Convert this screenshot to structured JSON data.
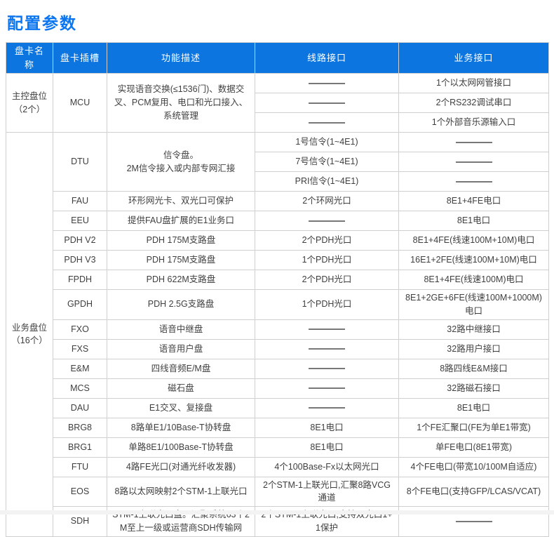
{
  "page_title": "配置参数",
  "colors": {
    "title": "#0b76f0",
    "header_bg": "#0d75e0",
    "header_text": "#ffffff",
    "border": "#cfcfcf",
    "body_text": "#3f3f3f",
    "dash": "#787878"
  },
  "table": {
    "headers": [
      "盘卡名称",
      "盘卡插槽",
      "功能描述",
      "线路接口",
      "业务接口"
    ],
    "sections": [
      {
        "name": "主控盘位",
        "count": "（2个）",
        "cards": [
          {
            "slot": "MCU",
            "desc": "实现语音交换(≤1536门)、数据交叉、PCM复用、电口和光口接入、系统管理",
            "desc_align": "left",
            "subrows": [
              {
                "line": "",
                "service": "1个以太网网管接口"
              },
              {
                "line": "",
                "service": "2个RS232调试串口"
              },
              {
                "line": "",
                "service": "1个外部音乐源输入口"
              }
            ]
          }
        ]
      },
      {
        "name": "业务盘位",
        "count": "（16个）",
        "cards": [
          {
            "slot": "DTU",
            "desc": "信令盘。\n2M信令接入或内部专网汇接",
            "desc_align": "left",
            "subrows": [
              {
                "line": "1号信令(1~4E1)",
                "service": ""
              },
              {
                "line": "7号信令(1~4E1)",
                "service": ""
              },
              {
                "line": "PRI信令(1~4E1)",
                "service": ""
              }
            ]
          },
          {
            "slot": "FAU",
            "desc": "环形网光卡、双光口可保护",
            "subrows": [
              {
                "line": "2个环网光口",
                "service": "8E1+4FE电口"
              }
            ]
          },
          {
            "slot": "EEU",
            "desc": "提供FAU盘扩展的E1业务口",
            "subrows": [
              {
                "line": "",
                "service": "8E1电口"
              }
            ]
          },
          {
            "slot": "PDH V2",
            "desc": "PDH 175M支路盘",
            "subrows": [
              {
                "line": "2个PDH光口",
                "service": "8E1+4FE(线速100M+10M)电口"
              }
            ]
          },
          {
            "slot": "PDH V3",
            "desc": "PDH 175M支路盘",
            "subrows": [
              {
                "line": "1个PDH光口",
                "service": "16E1+2FE(线速100M+10M)电口"
              }
            ]
          },
          {
            "slot": "FPDH",
            "desc": "PDH 622M支路盘",
            "subrows": [
              {
                "line": "2个PDH光口",
                "service": "8E1+4FE(线速100M)电口"
              }
            ]
          },
          {
            "slot": "GPDH",
            "desc": "PDH 2.5G支路盘",
            "subrows": [
              {
                "line": "1个PDH光口",
                "service": "8E1+2GE+6FE(线速100M+1000M)电口"
              }
            ]
          },
          {
            "slot": "FXO",
            "desc": "语音中继盘",
            "subrows": [
              {
                "line": "",
                "service": "32路中继接口"
              }
            ]
          },
          {
            "slot": "FXS",
            "desc": "语音用户盘",
            "subrows": [
              {
                "line": "",
                "service": "32路用户接口"
              }
            ]
          },
          {
            "slot": "E&M",
            "desc": "四线音频E/M盘",
            "subrows": [
              {
                "line": "",
                "service": "8路四线E&M接口"
              }
            ]
          },
          {
            "slot": "MCS",
            "desc": "磁石盘",
            "subrows": [
              {
                "line": "",
                "service": "32路磁石接口"
              }
            ]
          },
          {
            "slot": "DAU",
            "desc": "E1交叉、复接盘",
            "subrows": [
              {
                "line": "",
                "service": "8E1电口"
              }
            ]
          },
          {
            "slot": "BRG8",
            "desc": "8路单E1/10Base-T协转盘",
            "subrows": [
              {
                "line": "8E1电口",
                "service": "1个FE汇聚口(FE为单E1带宽)"
              }
            ]
          },
          {
            "slot": "BRG1",
            "desc": "单路8E1/100Base-T协转盘",
            "subrows": [
              {
                "line": "8E1电口",
                "service": "单FE电口(8E1带宽)"
              }
            ]
          },
          {
            "slot": "FTU",
            "desc": "4路FE光口(对通光纤收发器)",
            "subrows": [
              {
                "line": "4个100Base-Fx以太网光口",
                "service": "4个FE电口(带宽10/100M自适应)"
              }
            ]
          },
          {
            "slot": "EOS",
            "desc": "8路以太网映射2个STM-1上联光口",
            "subrows": [
              {
                "line": "2个STM-1上联光口,汇聚8路VCG通道",
                "service": "8个FE电口(支持GFP/LCAS/VCAT)"
              }
            ]
          },
          {
            "slot": "SDH",
            "desc": "STM-1上联光口盘。汇聚系统63个2M至上一级或运营商SDH传输网",
            "desc_align": "left",
            "line_align": "left",
            "subrows": [
              {
                "line": "2个STM-1上联光口,支持双光口1+1保护",
                "service": ""
              }
            ]
          }
        ]
      }
    ]
  }
}
